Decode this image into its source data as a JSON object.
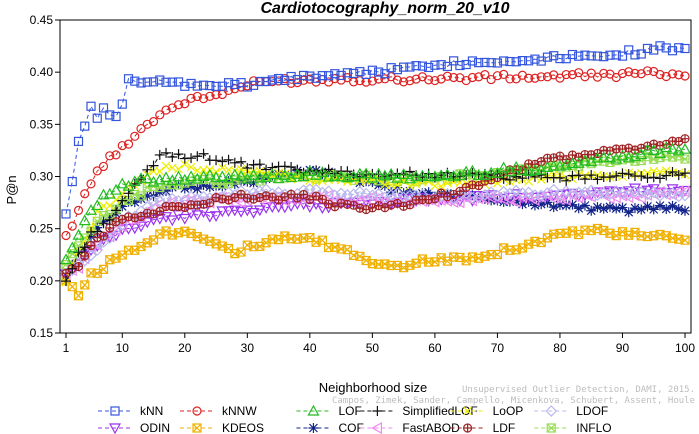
{
  "chart_data": {
    "type": "line",
    "title": "Cardiotocography_norm_20_v10",
    "xlabel": "Neighborhood size",
    "ylabel": "P@n",
    "xlim": [
      1,
      100
    ],
    "ylim": [
      0.15,
      0.45
    ],
    "xticks": [
      1,
      10,
      20,
      30,
      40,
      50,
      60,
      70,
      80,
      90,
      100
    ],
    "yticks": [
      0.15,
      0.2,
      0.25,
      0.3,
      0.35,
      0.4,
      0.45
    ],
    "grid": false,
    "legend_position": "bottom",
    "watermark_line1": "Unsupervised Outlier Detection, DAMI, 2015.",
    "watermark_line2": "Campos, Zimek, Sander, Campello, Micenkova, Schubert, Assent, Houle",
    "series": [
      {
        "name": "kNN",
        "color": "#3355dd",
        "marker": "square",
        "dash": "4,3",
        "anchors": [
          [
            1,
            0.266
          ],
          [
            2,
            0.298
          ],
          [
            3,
            0.335
          ],
          [
            4,
            0.35
          ],
          [
            5,
            0.37
          ],
          [
            6,
            0.353
          ],
          [
            7,
            0.368
          ],
          [
            8,
            0.36
          ],
          [
            9,
            0.355
          ],
          [
            10,
            0.368
          ],
          [
            11,
            0.392
          ],
          [
            15,
            0.39
          ],
          [
            20,
            0.388
          ],
          [
            30,
            0.387
          ],
          [
            35,
            0.393
          ],
          [
            45,
            0.398
          ],
          [
            55,
            0.403
          ],
          [
            60,
            0.408
          ],
          [
            70,
            0.41
          ],
          [
            80,
            0.415
          ],
          [
            90,
            0.418
          ],
          [
            97,
            0.423
          ],
          [
            100,
            0.42
          ]
        ]
      },
      {
        "name": "kNNW",
        "color": "#dd2222",
        "marker": "circle",
        "dash": "4,3",
        "anchors": [
          [
            1,
            0.242
          ],
          [
            3,
            0.268
          ],
          [
            5,
            0.295
          ],
          [
            7,
            0.312
          ],
          [
            9,
            0.322
          ],
          [
            12,
            0.34
          ],
          [
            16,
            0.36
          ],
          [
            20,
            0.372
          ],
          [
            25,
            0.378
          ],
          [
            30,
            0.388
          ],
          [
            35,
            0.392
          ],
          [
            40,
            0.392
          ],
          [
            45,
            0.394
          ],
          [
            50,
            0.393
          ],
          [
            60,
            0.394
          ],
          [
            70,
            0.395
          ],
          [
            80,
            0.396
          ],
          [
            90,
            0.398
          ],
          [
            100,
            0.399
          ]
        ]
      },
      {
        "name": "LOF",
        "color": "#22bb22",
        "marker": "triangle",
        "dash": "4,3",
        "anchors": [
          [
            1,
            0.22
          ],
          [
            3,
            0.245
          ],
          [
            5,
            0.27
          ],
          [
            8,
            0.285
          ],
          [
            12,
            0.295
          ],
          [
            20,
            0.298
          ],
          [
            30,
            0.3
          ],
          [
            40,
            0.302
          ],
          [
            50,
            0.3
          ],
          [
            60,
            0.3
          ],
          [
            70,
            0.305
          ],
          [
            80,
            0.31
          ],
          [
            90,
            0.32
          ],
          [
            100,
            0.328
          ]
        ]
      },
      {
        "name": "SimplifiedLOF",
        "color": "#111111",
        "marker": "plus",
        "dash": "4,3",
        "anchors": [
          [
            1,
            0.2
          ],
          [
            3,
            0.225
          ],
          [
            5,
            0.245
          ],
          [
            8,
            0.26
          ],
          [
            12,
            0.29
          ],
          [
            16,
            0.32
          ],
          [
            22,
            0.32
          ],
          [
            26,
            0.316
          ],
          [
            30,
            0.31
          ],
          [
            40,
            0.305
          ],
          [
            50,
            0.302
          ],
          [
            60,
            0.302
          ],
          [
            70,
            0.3
          ],
          [
            80,
            0.298
          ],
          [
            90,
            0.3
          ],
          [
            100,
            0.302
          ]
        ]
      },
      {
        "name": "LoOP",
        "color": "#eeee00",
        "marker": "x",
        "dash": "4,3",
        "anchors": [
          [
            1,
            0.2
          ],
          [
            3,
            0.228
          ],
          [
            6,
            0.265
          ],
          [
            10,
            0.285
          ],
          [
            15,
            0.305
          ],
          [
            20,
            0.31
          ],
          [
            25,
            0.306
          ],
          [
            30,
            0.305
          ],
          [
            40,
            0.298
          ],
          [
            50,
            0.295
          ],
          [
            60,
            0.293
          ],
          [
            70,
            0.295
          ],
          [
            80,
            0.3
          ],
          [
            90,
            0.302
          ],
          [
            100,
            0.305
          ]
        ]
      },
      {
        "name": "LDOF",
        "color": "#b8b8ee",
        "marker": "diamond",
        "dash": "4,3",
        "anchors": [
          [
            1,
            0.205
          ],
          [
            3,
            0.215
          ],
          [
            6,
            0.232
          ],
          [
            10,
            0.255
          ],
          [
            15,
            0.275
          ],
          [
            20,
            0.28
          ],
          [
            25,
            0.282
          ],
          [
            30,
            0.285
          ],
          [
            40,
            0.285
          ],
          [
            50,
            0.283
          ],
          [
            60,
            0.28
          ],
          [
            70,
            0.283
          ],
          [
            80,
            0.285
          ],
          [
            90,
            0.285
          ],
          [
            100,
            0.283
          ]
        ]
      },
      {
        "name": "ODIN",
        "color": "#9933ee",
        "marker": "triangle-down",
        "dash": "4,3",
        "anchors": [
          [
            1,
            0.205
          ],
          [
            3,
            0.215
          ],
          [
            6,
            0.235
          ],
          [
            10,
            0.248
          ],
          [
            15,
            0.258
          ],
          [
            20,
            0.262
          ],
          [
            25,
            0.265
          ],
          [
            30,
            0.268
          ],
          [
            40,
            0.272
          ],
          [
            50,
            0.275
          ],
          [
            60,
            0.278
          ],
          [
            70,
            0.28
          ],
          [
            80,
            0.283
          ],
          [
            90,
            0.286
          ],
          [
            100,
            0.288
          ]
        ]
      },
      {
        "name": "KDEOS",
        "color": "#f0b000",
        "marker": "boxed-x",
        "dash": "4,3",
        "anchors": [
          [
            1,
            0.2
          ],
          [
            3,
            0.188
          ],
          [
            5,
            0.205
          ],
          [
            8,
            0.218
          ],
          [
            12,
            0.232
          ],
          [
            16,
            0.245
          ],
          [
            20,
            0.248
          ],
          [
            24,
            0.24
          ],
          [
            28,
            0.228
          ],
          [
            32,
            0.235
          ],
          [
            36,
            0.24
          ],
          [
            40,
            0.24
          ],
          [
            45,
            0.23
          ],
          [
            50,
            0.218
          ],
          [
            55,
            0.215
          ],
          [
            60,
            0.22
          ],
          [
            65,
            0.222
          ],
          [
            70,
            0.228
          ],
          [
            75,
            0.235
          ],
          [
            80,
            0.245
          ],
          [
            85,
            0.248
          ],
          [
            90,
            0.245
          ],
          [
            95,
            0.242
          ],
          [
            100,
            0.24
          ]
        ]
      },
      {
        "name": "COF",
        "color": "#112288",
        "marker": "star",
        "dash": "4,3",
        "anchors": [
          [
            1,
            0.205
          ],
          [
            3,
            0.225
          ],
          [
            6,
            0.25
          ],
          [
            10,
            0.27
          ],
          [
            14,
            0.282
          ],
          [
            18,
            0.29
          ],
          [
            22,
            0.29
          ],
          [
            26,
            0.293
          ],
          [
            30,
            0.295
          ],
          [
            35,
            0.3
          ],
          [
            40,
            0.305
          ],
          [
            45,
            0.3
          ],
          [
            50,
            0.292
          ],
          [
            55,
            0.285
          ],
          [
            60,
            0.283
          ],
          [
            65,
            0.28
          ],
          [
            70,
            0.278
          ],
          [
            75,
            0.275
          ],
          [
            80,
            0.272
          ],
          [
            85,
            0.27
          ],
          [
            90,
            0.268
          ],
          [
            95,
            0.27
          ],
          [
            100,
            0.268
          ]
        ]
      },
      {
        "name": "FastABOD",
        "color": "#ee88ee",
        "marker": "triangle-left",
        "dash": "4,3",
        "anchors": [
          [
            1,
            0.205
          ],
          [
            3,
            0.215
          ],
          [
            6,
            0.235
          ],
          [
            10,
            0.255
          ],
          [
            15,
            0.27
          ],
          [
            20,
            0.275
          ],
          [
            25,
            0.278
          ],
          [
            30,
            0.278
          ],
          [
            40,
            0.28
          ],
          [
            50,
            0.278
          ],
          [
            60,
            0.276
          ],
          [
            70,
            0.278
          ],
          [
            80,
            0.28
          ],
          [
            90,
            0.282
          ],
          [
            100,
            0.283
          ]
        ]
      },
      {
        "name": "LDF",
        "color": "#a02222",
        "marker": "circle-plus",
        "dash": "4,3",
        "anchors": [
          [
            1,
            0.21
          ],
          [
            3,
            0.215
          ],
          [
            6,
            0.24
          ],
          [
            10,
            0.26
          ],
          [
            14,
            0.265
          ],
          [
            18,
            0.27
          ],
          [
            22,
            0.275
          ],
          [
            26,
            0.28
          ],
          [
            30,
            0.28
          ],
          [
            40,
            0.28
          ],
          [
            45,
            0.272
          ],
          [
            50,
            0.27
          ],
          [
            55,
            0.272
          ],
          [
            60,
            0.28
          ],
          [
            65,
            0.288
          ],
          [
            70,
            0.3
          ],
          [
            75,
            0.31
          ],
          [
            80,
            0.318
          ],
          [
            90,
            0.325
          ],
          [
            100,
            0.335
          ]
        ]
      },
      {
        "name": "INFLO",
        "color": "#99dd55",
        "marker": "hourglass",
        "dash": "4,3",
        "anchors": [
          [
            1,
            0.215
          ],
          [
            3,
            0.232
          ],
          [
            6,
            0.255
          ],
          [
            10,
            0.275
          ],
          [
            15,
            0.29
          ],
          [
            20,
            0.295
          ],
          [
            25,
            0.295
          ],
          [
            30,
            0.298
          ],
          [
            40,
            0.3
          ],
          [
            50,
            0.298
          ],
          [
            60,
            0.298
          ],
          [
            70,
            0.302
          ],
          [
            80,
            0.31
          ],
          [
            90,
            0.315
          ],
          [
            100,
            0.318
          ]
        ]
      }
    ]
  }
}
